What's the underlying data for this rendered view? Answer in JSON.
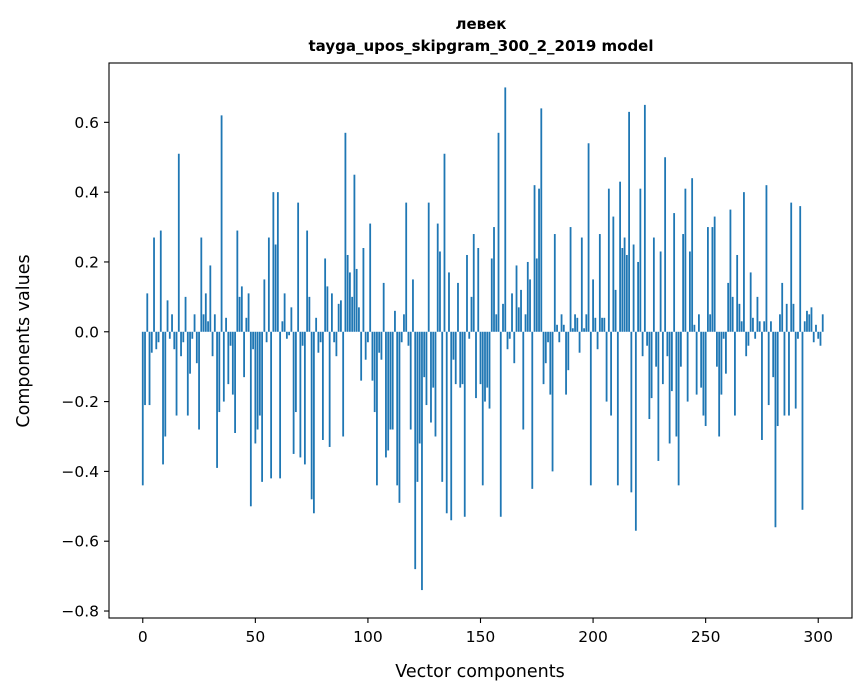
{
  "chart_data": {
    "type": "bar",
    "title": "левек",
    "subtitle": "tayga_upos_skipgram_300_2_2019 model",
    "xlabel": "Vector components",
    "ylabel": "Components values",
    "xlim": [
      -15,
      315
    ],
    "ylim": [
      -0.82,
      0.77
    ],
    "x_ticks": [
      0,
      50,
      100,
      150,
      200,
      250,
      300
    ],
    "x_tick_labels": [
      "0",
      "50",
      "100",
      "150",
      "200",
      "250",
      "300"
    ],
    "y_ticks": [
      -0.8,
      -0.6,
      -0.4,
      -0.2,
      0.0,
      0.2,
      0.4,
      0.6
    ],
    "y_tick_labels": [
      "−0.8",
      "−0.6",
      "−0.4",
      "−0.2",
      "0.0",
      "0.2",
      "0.4",
      "0.6"
    ],
    "bar_color": "#1f77b4",
    "series": [
      {
        "name": "левек",
        "values": [
          -0.44,
          -0.21,
          0.11,
          -0.21,
          -0.06,
          0.27,
          -0.05,
          -0.03,
          0.29,
          -0.38,
          -0.3,
          0.09,
          -0.02,
          0.05,
          -0.05,
          -0.24,
          0.51,
          -0.07,
          -0.03,
          0.1,
          -0.24,
          -0.12,
          -0.02,
          0.05,
          -0.09,
          -0.28,
          0.27,
          0.05,
          0.11,
          0.03,
          0.19,
          -0.07,
          0.05,
          -0.39,
          -0.23,
          0.62,
          -0.2,
          0.04,
          -0.15,
          -0.04,
          -0.18,
          -0.29,
          0.29,
          0.1,
          0.13,
          -0.13,
          0.04,
          0.11,
          -0.5,
          -0.05,
          -0.32,
          -0.28,
          -0.24,
          -0.43,
          0.15,
          -0.03,
          0.27,
          -0.42,
          0.4,
          0.25,
          0.4,
          -0.42,
          0.03,
          0.11,
          -0.02,
          -0.01,
          0.07,
          -0.35,
          -0.23,
          0.37,
          -0.36,
          -0.04,
          -0.38,
          0.29,
          0.1,
          -0.48,
          -0.52,
          0.04,
          -0.06,
          -0.03,
          -0.31,
          0.21,
          0.13,
          -0.33,
          0.11,
          -0.03,
          -0.07,
          0.08,
          0.09,
          -0.3,
          0.57,
          0.22,
          0.17,
          0.1,
          0.45,
          0.18,
          0.07,
          -0.14,
          0.24,
          -0.08,
          -0.03,
          0.31,
          -0.14,
          -0.23,
          -0.44,
          -0.06,
          -0.08,
          0.14,
          -0.36,
          -0.34,
          -0.28,
          -0.28,
          0.06,
          -0.44,
          -0.49,
          -0.03,
          0.05,
          0.37,
          -0.04,
          -0.28,
          0.15,
          -0.68,
          -0.43,
          -0.32,
          -0.74,
          -0.13,
          -0.21,
          0.37,
          -0.26,
          -0.16,
          -0.3,
          0.31,
          0.23,
          -0.43,
          0.51,
          -0.52,
          0.17,
          -0.54,
          -0.08,
          -0.15,
          0.14,
          -0.16,
          -0.15,
          -0.53,
          0.22,
          -0.02,
          0.1,
          0.28,
          -0.19,
          0.24,
          -0.15,
          -0.44,
          -0.2,
          -0.16,
          -0.22,
          0.21,
          0.3,
          0.05,
          0.57,
          -0.53,
          0.08,
          0.7,
          -0.05,
          -0.02,
          0.11,
          -0.09,
          0.19,
          0.07,
          0.12,
          -0.28,
          0.05,
          0.2,
          0.15,
          -0.45,
          0.42,
          0.21,
          0.41,
          0.64,
          -0.15,
          -0.09,
          -0.03,
          -0.18,
          -0.4,
          0.28,
          0.02,
          -0.03,
          0.05,
          0.02,
          -0.18,
          -0.11,
          0.3,
          0.01,
          0.05,
          0.04,
          -0.06,
          0.27,
          0.01,
          0.05,
          0.54,
          -0.44,
          0.15,
          0.04,
          -0.05,
          0.28,
          0.04,
          0.04,
          -0.2,
          0.41,
          -0.24,
          0.33,
          0.12,
          -0.44,
          0.43,
          0.24,
          0.27,
          0.22,
          0.63,
          -0.46,
          0.25,
          -0.57,
          0.2,
          0.41,
          -0.07,
          0.65,
          -0.04,
          -0.25,
          -0.19,
          0.27,
          -0.1,
          -0.37,
          0.23,
          -0.15,
          0.5,
          -0.07,
          -0.32,
          -0.17,
          0.34,
          -0.3,
          -0.44,
          -0.1,
          0.28,
          0.41,
          -0.2,
          0.23,
          0.44,
          0.02,
          -0.18,
          0.05,
          -0.16,
          -0.24,
          -0.27,
          0.3,
          0.05,
          0.3,
          0.33,
          -0.1,
          -0.3,
          -0.18,
          -0.02,
          -0.12,
          0.14,
          0.35,
          0.1,
          -0.24,
          0.22,
          0.08,
          0.03,
          0.4,
          -0.07,
          -0.04,
          0.17,
          0.04,
          -0.02,
          0.1,
          0.03,
          -0.31,
          0.03,
          0.42,
          -0.21,
          0.03,
          -0.13,
          -0.56,
          -0.27,
          0.05,
          0.14,
          -0.24,
          0.08,
          -0.24,
          0.37,
          0.08,
          -0.22,
          -0.02,
          0.36,
          -0.51,
          0.03,
          0.06,
          0.05,
          0.07,
          -0.03,
          0.02,
          -0.02,
          -0.04,
          0.05
        ]
      }
    ]
  }
}
